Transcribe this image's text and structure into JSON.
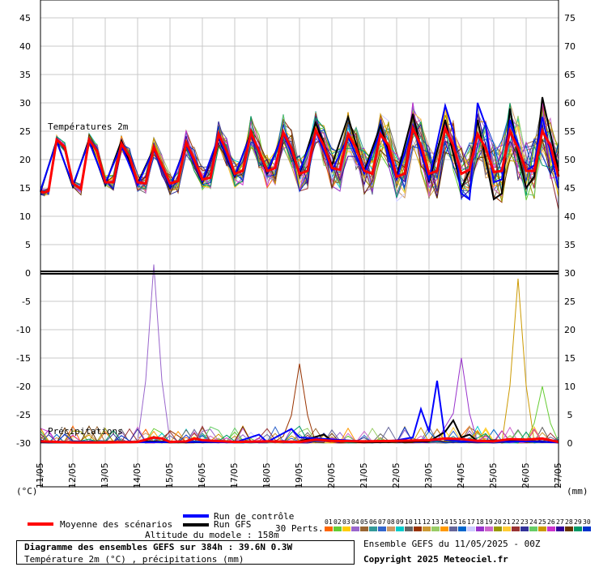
{
  "chart_data": {
    "type": "line",
    "title": "Diagramme des ensembles GEFS sur 384h : 39.6N 0.3W",
    "subtitle": "Température 2m (°C) , précipitations (mm)",
    "panel_labels": {
      "temperature": "Températures 2m",
      "precipitation": "Précipitations"
    },
    "x_dates": [
      "11/05",
      "12/05",
      "13/05",
      "14/05",
      "15/05",
      "16/05",
      "17/05",
      "18/05",
      "19/05",
      "20/05",
      "21/05",
      "22/05",
      "23/05",
      "24/05",
      "25/05",
      "26/05",
      "27/05"
    ],
    "x_range_days": [
      0,
      16
    ],
    "left_axis": {
      "label": "(°C)",
      "ticks": [
        45,
        40,
        35,
        30,
        25,
        20,
        15,
        10,
        5,
        0,
        -5,
        -10,
        -15,
        -20,
        -25,
        -30
      ],
      "range": [
        -30,
        45
      ]
    },
    "right_axis": {
      "label": "(mm)",
      "ticks": [
        75,
        70,
        65,
        60,
        55,
        50,
        45,
        40,
        35,
        30,
        25,
        20,
        15,
        10,
        5,
        0
      ],
      "range": [
        0,
        75
      ]
    },
    "series": [
      {
        "name": "Moyenne des scénarios",
        "color": "#ff0000",
        "temperature": [
          [
            0,
            14.3
          ],
          [
            0.12,
            14.2
          ],
          [
            0.25,
            14.5
          ],
          [
            0.5,
            23.5
          ],
          [
            0.75,
            22.2
          ],
          [
            1,
            15.8
          ],
          [
            1.25,
            14.8
          ],
          [
            1.5,
            23.5
          ],
          [
            1.75,
            21.5
          ],
          [
            2,
            16
          ],
          [
            2.25,
            16
          ],
          [
            2.5,
            22.8
          ],
          [
            2.75,
            20.5
          ],
          [
            3,
            16
          ],
          [
            3.25,
            15.8
          ],
          [
            3.5,
            22.2
          ],
          [
            3.75,
            19
          ],
          [
            4,
            15.8
          ],
          [
            4.25,
            16.2
          ],
          [
            4.5,
            23
          ],
          [
            4.75,
            20
          ],
          [
            5,
            16.5
          ],
          [
            5.25,
            16.8
          ],
          [
            5.5,
            24.5
          ],
          [
            5.75,
            21.5
          ],
          [
            6,
            17.5
          ],
          [
            6.25,
            18
          ],
          [
            6.5,
            24.8
          ],
          [
            6.75,
            21.5
          ],
          [
            7,
            18
          ],
          [
            7.25,
            18.5
          ],
          [
            7.5,
            24.8
          ],
          [
            7.75,
            22
          ],
          [
            8,
            17.5
          ],
          [
            8.25,
            18
          ],
          [
            8.5,
            25.2
          ],
          [
            8.75,
            22.5
          ],
          [
            9,
            18.5
          ],
          [
            9.25,
            18.2
          ],
          [
            9.5,
            24.5
          ],
          [
            9.75,
            22
          ],
          [
            10,
            18
          ],
          [
            10.25,
            17.5
          ],
          [
            10.5,
            24.5
          ],
          [
            10.75,
            22.5
          ],
          [
            11,
            17
          ],
          [
            11.25,
            17.5
          ],
          [
            11.5,
            25.5
          ],
          [
            11.75,
            22.5
          ],
          [
            12,
            17.5
          ],
          [
            12.25,
            18
          ],
          [
            12.5,
            25.5
          ],
          [
            12.75,
            22.5
          ],
          [
            13,
            17.5
          ],
          [
            13.25,
            18.2
          ],
          [
            13.5,
            24.5
          ],
          [
            13.75,
            22
          ],
          [
            14,
            17.8
          ],
          [
            14.25,
            18
          ],
          [
            14.5,
            25
          ],
          [
            14.75,
            22
          ],
          [
            15,
            18
          ],
          [
            15.25,
            18
          ],
          [
            15.5,
            25
          ],
          [
            15.75,
            22.5
          ],
          [
            16,
            17
          ]
        ],
        "precipitation": [
          [
            0,
            0.3
          ],
          [
            1,
            0.1
          ],
          [
            2,
            0.1
          ],
          [
            3,
            0.2
          ],
          [
            3.5,
            1
          ],
          [
            3.75,
            0.8
          ],
          [
            4,
            0.2
          ],
          [
            4.5,
            0.3
          ],
          [
            4.75,
            0.8
          ],
          [
            5,
            0.5
          ],
          [
            6,
            0.2
          ],
          [
            7,
            0.3
          ],
          [
            8,
            0.2
          ],
          [
            8.5,
            0.6
          ],
          [
            9,
            0.4
          ],
          [
            10,
            0.3
          ],
          [
            11,
            0.4
          ],
          [
            12,
            0.5
          ],
          [
            12.5,
            0.8
          ],
          [
            13,
            0.7
          ],
          [
            13.5,
            0.4
          ],
          [
            14,
            0.3
          ],
          [
            14.5,
            0.7
          ],
          [
            15,
            0.6
          ],
          [
            15.5,
            0.8
          ],
          [
            16,
            0.2
          ]
        ]
      },
      {
        "name": "Run de contrôle",
        "color": "#0000ff",
        "temperature": [
          [
            0,
            14.5
          ],
          [
            0.5,
            23.2
          ],
          [
            1,
            15.5
          ],
          [
            1.5,
            23.2
          ],
          [
            2,
            15.8
          ],
          [
            2.5,
            22.5
          ],
          [
            3,
            15.5
          ],
          [
            3.5,
            21.8
          ],
          [
            4,
            15.2
          ],
          [
            4.5,
            22.5
          ],
          [
            5,
            16.2
          ],
          [
            5.5,
            24
          ],
          [
            6,
            17.2
          ],
          [
            6.5,
            24.5
          ],
          [
            7,
            17.8
          ],
          [
            7.5,
            24.5
          ],
          [
            8,
            18
          ],
          [
            8.5,
            25
          ],
          [
            9,
            18
          ],
          [
            9.5,
            24
          ],
          [
            10,
            17.5
          ],
          [
            10.5,
            25
          ],
          [
            11,
            16.5
          ],
          [
            11.5,
            26
          ],
          [
            12,
            16.5
          ],
          [
            12.5,
            29.5
          ],
          [
            12.75,
            25
          ],
          [
            13,
            14
          ],
          [
            13.25,
            13
          ],
          [
            13.5,
            30
          ],
          [
            13.75,
            26
          ],
          [
            14,
            16
          ],
          [
            14.25,
            16.5
          ],
          [
            14.5,
            27
          ],
          [
            15,
            18
          ],
          [
            15.25,
            19
          ],
          [
            15.5,
            27.5
          ],
          [
            16,
            15
          ]
        ],
        "precipitation": [
          [
            0,
            0.2
          ],
          [
            1,
            0.1
          ],
          [
            5,
            0.2
          ],
          [
            6,
            0.1
          ],
          [
            6.75,
            1.5
          ],
          [
            7,
            0.2
          ],
          [
            7.75,
            2.5
          ],
          [
            8,
            1
          ],
          [
            10,
            0.3
          ],
          [
            10.75,
            0.4
          ],
          [
            11,
            0.5
          ],
          [
            11.5,
            1
          ],
          [
            11.75,
            6
          ],
          [
            12,
            2
          ],
          [
            12.25,
            11
          ],
          [
            12.5,
            0.6
          ],
          [
            13,
            0.3
          ],
          [
            14,
            0.2
          ],
          [
            15,
            0.3
          ],
          [
            16,
            0.1
          ]
        ]
      },
      {
        "name": "Run GFS",
        "color": "#000000",
        "temperature": [
          [
            0,
            14.3
          ],
          [
            0.5,
            23.4
          ],
          [
            1,
            15.2
          ],
          [
            1.5,
            23.6
          ],
          [
            2,
            15.5
          ],
          [
            2.5,
            23.3
          ],
          [
            3,
            15.8
          ],
          [
            3.5,
            22
          ],
          [
            4,
            15
          ],
          [
            4.5,
            22.8
          ],
          [
            5,
            16
          ],
          [
            5.5,
            23.8
          ],
          [
            6,
            17
          ],
          [
            6.5,
            24.8
          ],
          [
            7,
            17.5
          ],
          [
            7.5,
            24.8
          ],
          [
            8,
            17.5
          ],
          [
            8.5,
            26.5
          ],
          [
            9,
            19
          ],
          [
            9.5,
            27.5
          ],
          [
            10,
            18
          ],
          [
            10.5,
            26
          ],
          [
            11,
            17
          ],
          [
            11.5,
            28
          ],
          [
            12,
            16
          ],
          [
            12.5,
            27
          ],
          [
            12.75,
            21
          ],
          [
            13,
            15
          ],
          [
            13.25,
            18
          ],
          [
            13.5,
            27
          ],
          [
            14,
            13
          ],
          [
            14.25,
            14
          ],
          [
            14.5,
            29
          ],
          [
            14.75,
            21
          ],
          [
            15,
            15
          ],
          [
            15.25,
            17
          ],
          [
            15.5,
            31
          ],
          [
            16,
            18
          ]
        ],
        "precipitation": [
          [
            0,
            0.1
          ],
          [
            2,
            0.1
          ],
          [
            3.5,
            0.3
          ],
          [
            4,
            0.1
          ],
          [
            6,
            0.2
          ],
          [
            8,
            0.3
          ],
          [
            8.75,
            1.5
          ],
          [
            9,
            0.4
          ],
          [
            10,
            0.1
          ],
          [
            11,
            0.2
          ],
          [
            12,
            0.3
          ],
          [
            12.5,
            2
          ],
          [
            12.75,
            4
          ],
          [
            13,
            1
          ],
          [
            13.25,
            1.5
          ],
          [
            13.5,
            0.3
          ],
          [
            14,
            0.5
          ],
          [
            15,
            0.4
          ],
          [
            16,
            0.1
          ]
        ]
      }
    ],
    "ensemble_members": {
      "count": 30,
      "precip_peaks_mm": [
        [
          3.5,
          31.5
        ],
        [
          8.0,
          14
        ],
        [
          13.0,
          15
        ],
        [
          14.75,
          29
        ],
        [
          15.5,
          10
        ]
      ]
    },
    "legend": {
      "mean": "Moyenne des scénarios",
      "control": "Run de contrôle",
      "gfs": "Run GFS",
      "perts_label": "30 Perts.",
      "altitude": "Altitude du modele : 158m",
      "member_numbers": [
        "01",
        "02",
        "03",
        "04",
        "05",
        "06",
        "07",
        "08",
        "09",
        "10",
        "11",
        "12",
        "13",
        "14",
        "15",
        "16",
        "17",
        "18",
        "19",
        "20",
        "21",
        "22",
        "23",
        "24",
        "25",
        "26",
        "27",
        "28",
        "29",
        "30"
      ],
      "member_colors": [
        "#ff6600",
        "#66cc33",
        "#ffcc00",
        "#9966cc",
        "#996633",
        "#339999",
        "#3366cc",
        "#cc9966",
        "#00cccc",
        "#666666",
        "#993300",
        "#cc9933",
        "#99cc66",
        "#ff9900",
        "#666699",
        "#0066cc",
        "#ccccff",
        "#9933cc",
        "#cc66cc",
        "#999900",
        "#ffcc33",
        "#993333",
        "#333399",
        "#66cc66",
        "#cc9900",
        "#cc33cc",
        "#330099",
        "#663300",
        "#009966",
        "#0033cc"
      ]
    },
    "footer": {
      "title": "Diagramme des ensembles GEFS sur 384h : 39.6N 0.3W",
      "subtitle": "Température 2m (°C) , précipitations (mm)",
      "run": "Ensemble GEFS du 11/05/2025 - 00Z",
      "copyright": "Copyright 2025 Meteociel.fr"
    }
  }
}
